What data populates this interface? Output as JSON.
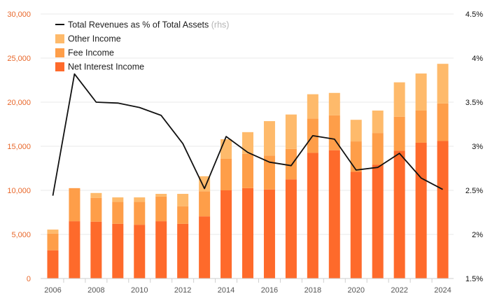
{
  "chart_data": {
    "type": "bar",
    "subtype": "stacked bar with line on secondary axis",
    "x": [
      2006,
      2007,
      2008,
      2009,
      2010,
      2011,
      2012,
      2013,
      2014,
      2015,
      2016,
      2017,
      2018,
      2019,
      2020,
      2021,
      2022,
      2023,
      2024
    ],
    "x_tick_labels": [
      "2006",
      "2008",
      "2010",
      "2012",
      "2014",
      "2016",
      "2018",
      "2020",
      "2022",
      "2024"
    ],
    "bar_series": [
      {
        "name": "Net Interest Income",
        "color": "#fe6a2b",
        "values": [
          3200,
          6500,
          6450,
          6200,
          6100,
          6500,
          6200,
          7050,
          10000,
          10250,
          10100,
          11250,
          14250,
          14550,
          12100,
          12900,
          14500,
          15400,
          15600
        ]
      },
      {
        "name": "Fee Income",
        "color": "#fe9e49",
        "values": [
          1900,
          3750,
          2700,
          2500,
          2600,
          2800,
          2000,
          2850,
          3600,
          3900,
          3850,
          3450,
          3900,
          3950,
          3450,
          3600,
          3850,
          3650,
          4250
        ]
      },
      {
        "name": "Other Income",
        "color": "#feba6b",
        "values": [
          450,
          0,
          550,
          500,
          500,
          300,
          1400,
          1700,
          2200,
          2450,
          3900,
          3900,
          2750,
          2550,
          2450,
          2550,
          3900,
          4200,
          4500
        ]
      }
    ],
    "line_series": {
      "name": "Total Revenues as % of Total Assets",
      "name_note": "(rhs)",
      "axis": "right",
      "color": "#111111",
      "values": [
        2.44,
        3.82,
        3.5,
        3.49,
        3.44,
        3.35,
        3.03,
        2.52,
        3.11,
        2.93,
        2.82,
        2.78,
        3.12,
        3.08,
        2.73,
        2.76,
        2.92,
        2.64,
        2.51
      ]
    },
    "y_left": {
      "range": [
        0,
        30000
      ],
      "ticks": [
        "0",
        "5,000",
        "10,000",
        "15,000",
        "20,000",
        "25,000",
        "30,000"
      ],
      "tick_color": "#e8672a"
    },
    "y_right": {
      "range": [
        1.5,
        4.5
      ],
      "ticks": [
        "1.5%",
        "2%",
        "2.5%",
        "3%",
        "3.5%",
        "4%",
        "4.5%"
      ]
    },
    "grid": true,
    "legend_position": "top-left"
  }
}
